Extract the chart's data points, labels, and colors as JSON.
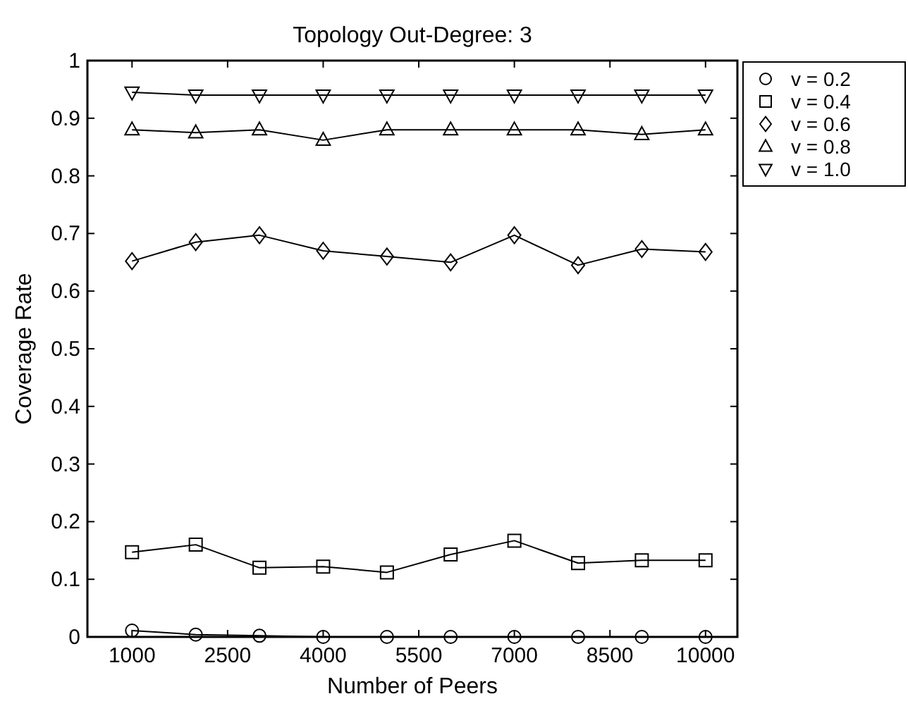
{
  "chart_data": {
    "type": "line",
    "title": "Topology Out-Degree: 3",
    "xlabel": "Number of Peers",
    "ylabel": "Coverage Rate",
    "x": [
      1000,
      2000,
      3000,
      4000,
      5000,
      6000,
      7000,
      8000,
      9000,
      10000
    ],
    "series": [
      {
        "name": "v = 0.2",
        "color": "#000000",
        "marker": "circle",
        "values": [
          0.011,
          0.004,
          0.002,
          0,
          0,
          0,
          0,
          0,
          0,
          0
        ]
      },
      {
        "name": "v = 0.4",
        "color": "#000000",
        "marker": "square",
        "values": [
          0.147,
          0.16,
          0.12,
          0.122,
          0.112,
          0.143,
          0.167,
          0.128,
          0.133,
          0.133
        ]
      },
      {
        "name": "v = 0.6",
        "color": "#000000",
        "marker": "diamond",
        "values": [
          0.652,
          0.685,
          0.697,
          0.67,
          0.66,
          0.65,
          0.697,
          0.645,
          0.673,
          0.668
        ]
      },
      {
        "name": "v = 0.8",
        "color": "#000000",
        "marker": "triangle",
        "values": [
          0.88,
          0.875,
          0.88,
          0.862,
          0.88,
          0.88,
          0.88,
          0.88,
          0.872,
          0.88
        ]
      },
      {
        "name": "v = 1.0",
        "color": "#000000",
        "marker": "triangle-down",
        "values": [
          0.945,
          0.94,
          0.94,
          0.94,
          0.94,
          0.94,
          0.94,
          0.94,
          0.94,
          0.94
        ]
      }
    ],
    "xlim": [
      300,
      10500
    ],
    "xticks": [
      1000,
      2500,
      4000,
      5500,
      7000,
      8500,
      10000
    ],
    "ylim": [
      0,
      1
    ],
    "yticks": [
      0,
      0.1,
      0.2,
      0.3,
      0.4,
      0.5,
      0.6,
      0.7,
      0.8,
      0.9,
      1
    ],
    "grid": false,
    "legend": "top right",
    "line_style": "solid"
  }
}
